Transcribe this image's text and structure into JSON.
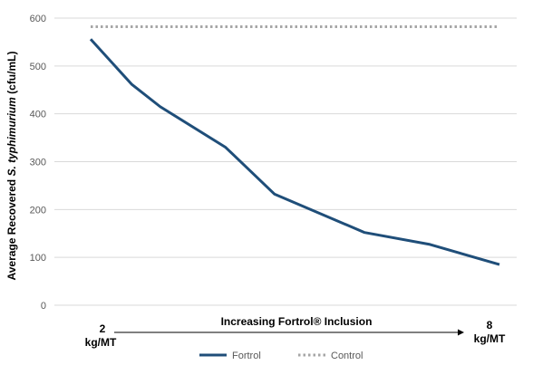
{
  "chart_data": {
    "type": "line",
    "ylabel_prefix": "Average Recovered ",
    "ylabel_italic": "S. typhimurium",
    "ylabel_suffix": "  (cfu/mL)",
    "xlabel": "Increasing Fortrol® Inclusion",
    "x_start_label": [
      "2",
      "kg/MT"
    ],
    "x_end_label": [
      "8",
      "kg/MT"
    ],
    "ylim": [
      0,
      600
    ],
    "y_ticks": [
      0,
      100,
      200,
      300,
      400,
      500,
      600
    ],
    "grid": true,
    "legend_position": "bottom",
    "x": [
      0,
      0.1,
      0.17,
      0.33,
      0.45,
      0.67,
      0.83,
      1.0
    ],
    "series": [
      {
        "name": "Fortrol",
        "style": "solid",
        "color": "#1f4e79",
        "values": [
          556,
          462,
          415,
          330,
          232,
          152,
          127,
          85
        ]
      },
      {
        "name": "Control",
        "style": "dotted",
        "color": "#a6a6a6",
        "values": [
          582,
          582,
          582,
          582,
          582,
          582,
          582,
          582
        ]
      }
    ]
  }
}
